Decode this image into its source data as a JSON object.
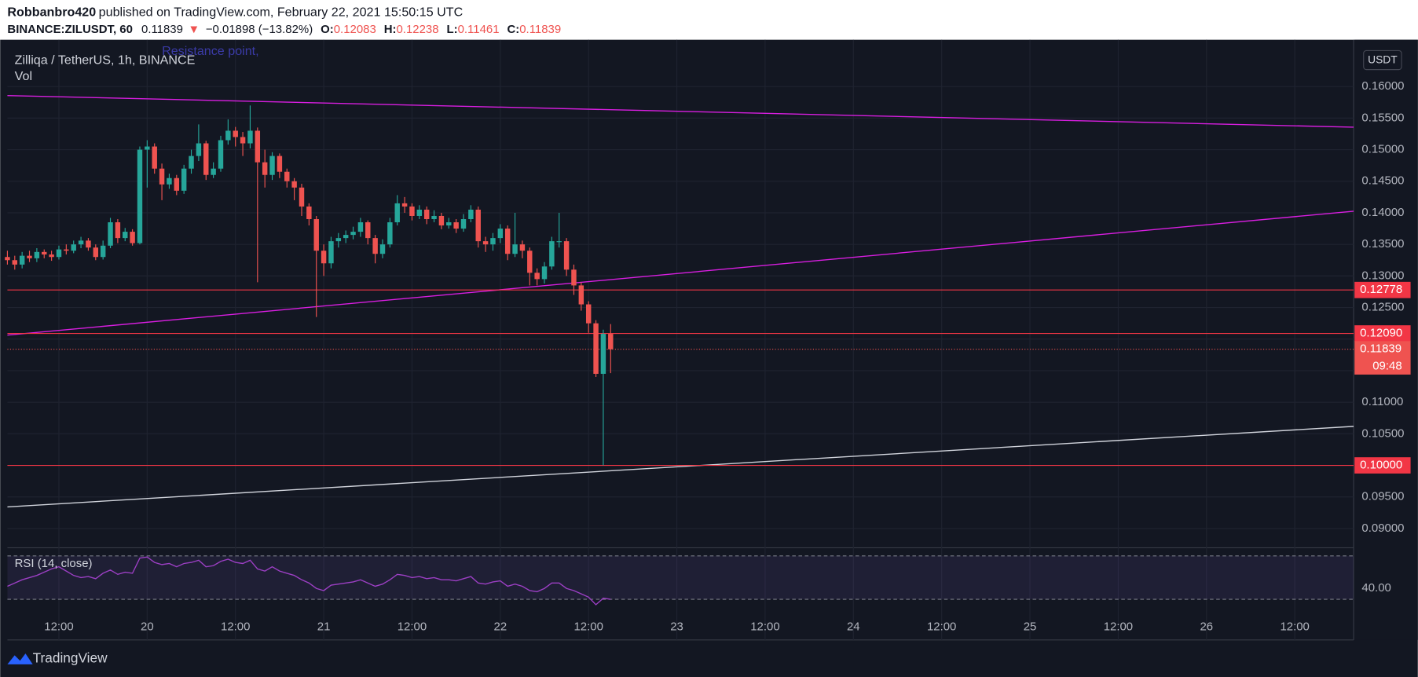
{
  "header": {
    "author": "Robbanbro420",
    "published": "published on TradingView.com, February 22, 2021 15:50:15 UTC",
    "symbol": "BINANCE:ZILUSDT, 60",
    "last": "0.11839",
    "arrow": "▼",
    "change": "−0.01898 (−13.82%)",
    "o_label": "O:",
    "o": "0.12083",
    "h_label": "H:",
    "h": "0.12238",
    "l_label": "L:",
    "l": "0.11461",
    "c_label": "C:",
    "c": "0.11839",
    "legend": "Zilliqa / TetherUS, 1h, BINANCE",
    "vol": "Vol",
    "currency": "USDT",
    "brand": "TradingView"
  },
  "chart_data": {
    "type": "candlestick",
    "up_color": "#26a69a",
    "down_color": "#ef5350",
    "grid": true,
    "annotations": [
      {
        "text": "Resistance point,",
        "x": "2021-02-20 02:00",
        "y": 0.1655
      }
    ],
    "x": [
      "2021-02-19 05:00",
      "2021-02-19 06:00",
      "2021-02-19 07:00",
      "2021-02-19 08:00",
      "2021-02-19 09:00",
      "2021-02-19 10:00",
      "2021-02-19 11:00",
      "2021-02-19 12:00",
      "2021-02-19 13:00",
      "2021-02-19 14:00",
      "2021-02-19 15:00",
      "2021-02-19 16:00",
      "2021-02-19 17:00",
      "2021-02-19 18:00",
      "2021-02-19 19:00",
      "2021-02-19 20:00",
      "2021-02-19 21:00",
      "2021-02-19 22:00",
      "2021-02-19 23:00",
      "2021-02-20 00:00",
      "2021-02-20 01:00",
      "2021-02-20 02:00",
      "2021-02-20 03:00",
      "2021-02-20 04:00",
      "2021-02-20 05:00",
      "2021-02-20 06:00",
      "2021-02-20 07:00",
      "2021-02-20 08:00",
      "2021-02-20 09:00",
      "2021-02-20 10:00",
      "2021-02-20 11:00",
      "2021-02-20 12:00",
      "2021-02-20 13:00",
      "2021-02-20 14:00",
      "2021-02-20 15:00",
      "2021-02-20 16:00",
      "2021-02-20 17:00",
      "2021-02-20 18:00",
      "2021-02-20 19:00",
      "2021-02-20 20:00",
      "2021-02-20 21:00",
      "2021-02-20 22:00",
      "2021-02-20 23:00",
      "2021-02-21 00:00",
      "2021-02-21 01:00",
      "2021-02-21 02:00",
      "2021-02-21 03:00",
      "2021-02-21 04:00",
      "2021-02-21 05:00",
      "2021-02-21 06:00",
      "2021-02-21 07:00",
      "2021-02-21 08:00",
      "2021-02-21 09:00",
      "2021-02-21 10:00",
      "2021-02-21 11:00",
      "2021-02-21 12:00",
      "2021-02-21 13:00",
      "2021-02-21 14:00",
      "2021-02-21 15:00",
      "2021-02-21 16:00",
      "2021-02-21 17:00",
      "2021-02-21 18:00",
      "2021-02-21 19:00",
      "2021-02-21 20:00",
      "2021-02-21 21:00",
      "2021-02-21 22:00",
      "2021-02-21 23:00",
      "2021-02-22 00:00",
      "2021-02-22 01:00",
      "2021-02-22 02:00",
      "2021-02-22 03:00",
      "2021-02-22 04:00",
      "2021-02-22 05:00",
      "2021-02-22 06:00",
      "2021-02-22 07:00",
      "2021-02-22 08:00",
      "2021-02-22 09:00",
      "2021-02-22 10:00",
      "2021-02-22 11:00",
      "2021-02-22 12:00",
      "2021-02-22 13:00",
      "2021-02-22 14:00",
      "2021-02-22 15:00"
    ],
    "open": [
      0.133,
      0.1325,
      0.1318,
      0.1332,
      0.1328,
      0.1338,
      0.1334,
      0.133,
      0.1342,
      0.134,
      0.135,
      0.1356,
      0.1345,
      0.133,
      0.1348,
      0.1385,
      0.136,
      0.137,
      0.1352,
      0.15,
      0.1505,
      0.147,
      0.1445,
      0.1455,
      0.1435,
      0.147,
      0.149,
      0.151,
      0.146,
      0.147,
      0.1515,
      0.153,
      0.152,
      0.151,
      0.153,
      0.148,
      0.146,
      0.149,
      0.1465,
      0.145,
      0.144,
      0.141,
      0.139,
      0.134,
      0.132,
      0.1355,
      0.136,
      0.1365,
      0.137,
      0.1385,
      0.136,
      0.1335,
      0.135,
      0.1385,
      0.1415,
      0.141,
      0.1395,
      0.1405,
      0.139,
      0.1395,
      0.138,
      0.1385,
      0.1375,
      0.139,
      0.1405,
      0.1355,
      0.135,
      0.136,
      0.1375,
      0.1335,
      0.135,
      0.134,
      0.1305,
      0.1295,
      0.1315,
      0.1355,
      0.1355,
      0.131,
      0.1285,
      0.1255,
      0.1225,
      0.1145,
      0.12083
    ],
    "high": [
      0.134,
      0.1332,
      0.1338,
      0.134,
      0.1344,
      0.1342,
      0.134,
      0.1348,
      0.135,
      0.1356,
      0.1362,
      0.136,
      0.135,
      0.1356,
      0.1392,
      0.139,
      0.1376,
      0.1374,
      0.1505,
      0.1515,
      0.151,
      0.1478,
      0.1462,
      0.146,
      0.1476,
      0.15,
      0.154,
      0.1514,
      0.148,
      0.1522,
      0.1548,
      0.1536,
      0.1528,
      0.157,
      0.1535,
      0.15,
      0.1496,
      0.1494,
      0.147,
      0.1455,
      0.1446,
      0.1415,
      0.1395,
      0.135,
      0.1362,
      0.1368,
      0.1372,
      0.1378,
      0.1392,
      0.1388,
      0.1365,
      0.1358,
      0.1392,
      0.1428,
      0.1425,
      0.1415,
      0.1412,
      0.141,
      0.1404,
      0.14,
      0.1392,
      0.139,
      0.1398,
      0.1412,
      0.141,
      0.1362,
      0.1368,
      0.1382,
      0.138,
      0.14,
      0.1356,
      0.1345,
      0.1312,
      0.1322,
      0.1362,
      0.14,
      0.136,
      0.1318,
      0.129,
      0.126,
      0.123,
      0.1215,
      0.12238
    ],
    "low": [
      0.1318,
      0.131,
      0.1312,
      0.1322,
      0.1322,
      0.1328,
      0.1324,
      0.1326,
      0.1334,
      0.1336,
      0.1344,
      0.134,
      0.1325,
      0.1326,
      0.1344,
      0.1352,
      0.1355,
      0.1348,
      0.135,
      0.144,
      0.1462,
      0.142,
      0.1438,
      0.1428,
      0.143,
      0.1462,
      0.1482,
      0.1452,
      0.1455,
      0.1465,
      0.1508,
      0.1505,
      0.149,
      0.1502,
      0.129,
      0.144,
      0.1452,
      0.1455,
      0.144,
      0.142,
      0.1395,
      0.138,
      0.1235,
      0.13,
      0.1312,
      0.1345,
      0.1352,
      0.1358,
      0.1362,
      0.135,
      0.132,
      0.1328,
      0.1345,
      0.138,
      0.14,
      0.1388,
      0.139,
      0.1382,
      0.1385,
      0.1374,
      0.1375,
      0.1368,
      0.137,
      0.1385,
      0.1345,
      0.1338,
      0.134,
      0.1352,
      0.1325,
      0.133,
      0.1328,
      0.1285,
      0.1285,
      0.1288,
      0.131,
      0.1345,
      0.13,
      0.127,
      0.1245,
      0.121,
      0.114,
      0.1,
      0.11461
    ],
    "close": [
      0.1325,
      0.1318,
      0.1332,
      0.1328,
      0.1338,
      0.1334,
      0.133,
      0.1342,
      0.134,
      0.135,
      0.1356,
      0.1345,
      0.133,
      0.1348,
      0.1385,
      0.136,
      0.137,
      0.1352,
      0.15,
      0.1505,
      0.147,
      0.1445,
      0.1455,
      0.1435,
      0.147,
      0.149,
      0.151,
      0.146,
      0.147,
      0.1515,
      0.153,
      0.152,
      0.151,
      0.153,
      0.148,
      0.146,
      0.149,
      0.1465,
      0.145,
      0.144,
      0.141,
      0.139,
      0.134,
      0.132,
      0.1355,
      0.136,
      0.1365,
      0.137,
      0.1385,
      0.136,
      0.1335,
      0.135,
      0.1385,
      0.1415,
      0.141,
      0.1395,
      0.1405,
      0.139,
      0.1395,
      0.138,
      0.1385,
      0.1375,
      0.139,
      0.1405,
      0.1355,
      0.135,
      0.136,
      0.1375,
      0.1335,
      0.135,
      0.134,
      0.1305,
      0.1295,
      0.1315,
      0.1355,
      0.1355,
      0.131,
      0.1285,
      0.1255,
      0.1225,
      0.1145,
      0.12083,
      0.11839
    ],
    "xlim": [
      "2021-02-19 05:00",
      "2021-02-26 20:00"
    ],
    "xticks": [
      {
        "value": "2021-02-19 12:00",
        "label": "12:00"
      },
      {
        "value": "2021-02-20 00:00",
        "label": "20"
      },
      {
        "value": "2021-02-20 12:00",
        "label": "12:00"
      },
      {
        "value": "2021-02-21 00:00",
        "label": "21"
      },
      {
        "value": "2021-02-21 12:00",
        "label": "12:00"
      },
      {
        "value": "2021-02-22 00:00",
        "label": "22"
      },
      {
        "value": "2021-02-22 12:00",
        "label": "12:00"
      },
      {
        "value": "2021-02-23 00:00",
        "label": "23"
      },
      {
        "value": "2021-02-23 12:00",
        "label": "12:00"
      },
      {
        "value": "2021-02-24 00:00",
        "label": "24"
      },
      {
        "value": "2021-02-24 12:00",
        "label": "12:00"
      },
      {
        "value": "2021-02-25 00:00",
        "label": "25"
      },
      {
        "value": "2021-02-25 12:00",
        "label": "12:00"
      },
      {
        "value": "2021-02-26 00:00",
        "label": "26"
      },
      {
        "value": "2021-02-26 12:00",
        "label": "12:00"
      }
    ],
    "ylim": [
      0.0871,
      0.1654
    ],
    "yticks": [
      {
        "value": 0.16,
        "label": "0.16000"
      },
      {
        "value": 0.155,
        "label": "0.15500"
      },
      {
        "value": 0.15,
        "label": "0.15000"
      },
      {
        "value": 0.145,
        "label": "0.14500"
      },
      {
        "value": 0.14,
        "label": "0.14000"
      },
      {
        "value": 0.135,
        "label": "0.13500"
      },
      {
        "value": 0.13,
        "label": "0.13000"
      },
      {
        "value": 0.125,
        "label": "0.12500"
      },
      {
        "value": 0.12,
        "label": "0.12000"
      },
      {
        "value": 0.115,
        "label": "0.11500"
      },
      {
        "value": 0.11,
        "label": "0.11000"
      },
      {
        "value": 0.105,
        "label": "0.10500"
      },
      {
        "value": 0.1,
        "label": "0.10000"
      },
      {
        "value": 0.095,
        "label": "0.09500"
      },
      {
        "value": 0.09,
        "label": "0.09000"
      }
    ],
    "hlines": [
      {
        "value": 0.12778,
        "label": "0.12778",
        "color": "#f23645"
      },
      {
        "value": 0.1209,
        "label": "0.12090",
        "color": "#f23645"
      },
      {
        "value": 0.1,
        "label": "0.10000",
        "color": "#f23645"
      }
    ],
    "last_price": {
      "value": 0.11839,
      "label": "0.11839",
      "countdown": "09:48",
      "color": "#ef5350"
    },
    "trendlines": [
      {
        "x": [
          "2021-02-19 05:00",
          "2021-02-26 20:00"
        ],
        "y": [
          0.15857,
          0.15356
        ],
        "color": "#d81ee0"
      },
      {
        "x": [
          "2021-02-19 05:00",
          "2021-02-26 20:00"
        ],
        "y": [
          0.12063,
          0.14025
        ],
        "color": "#d81ee0"
      },
      {
        "x": [
          "2021-02-19 05:00",
          "2021-02-26 20:00"
        ],
        "y": [
          0.09343,
          0.10618
        ],
        "color": "#d1d4dc"
      }
    ],
    "rsi": {
      "name": "RSI (14, close)",
      "color": "#9c3fc4",
      "ylim": [
        17.5,
        76.7
      ],
      "levels": [
        30,
        70
      ],
      "yticks": [
        {
          "value": 40,
          "label": "40.00"
        }
      ],
      "values": [
        42,
        45,
        48,
        50,
        52,
        55,
        58,
        60,
        56,
        52,
        50,
        51,
        49,
        54,
        57,
        53,
        55,
        54,
        68,
        69,
        64,
        62,
        63,
        60,
        63,
        64,
        66,
        60,
        61,
        65,
        67,
        64,
        63,
        66,
        58,
        56,
        60,
        56,
        54,
        52,
        48,
        45,
        40,
        38,
        43,
        44,
        45,
        46,
        48,
        45,
        42,
        44,
        48,
        53,
        52,
        50,
        51,
        49,
        50,
        48,
        48,
        47,
        49,
        51,
        45,
        44,
        46,
        47,
        42,
        44,
        42,
        38,
        37,
        40,
        45,
        45,
        40,
        38,
        35,
        32,
        25,
        31,
        30
      ]
    }
  }
}
